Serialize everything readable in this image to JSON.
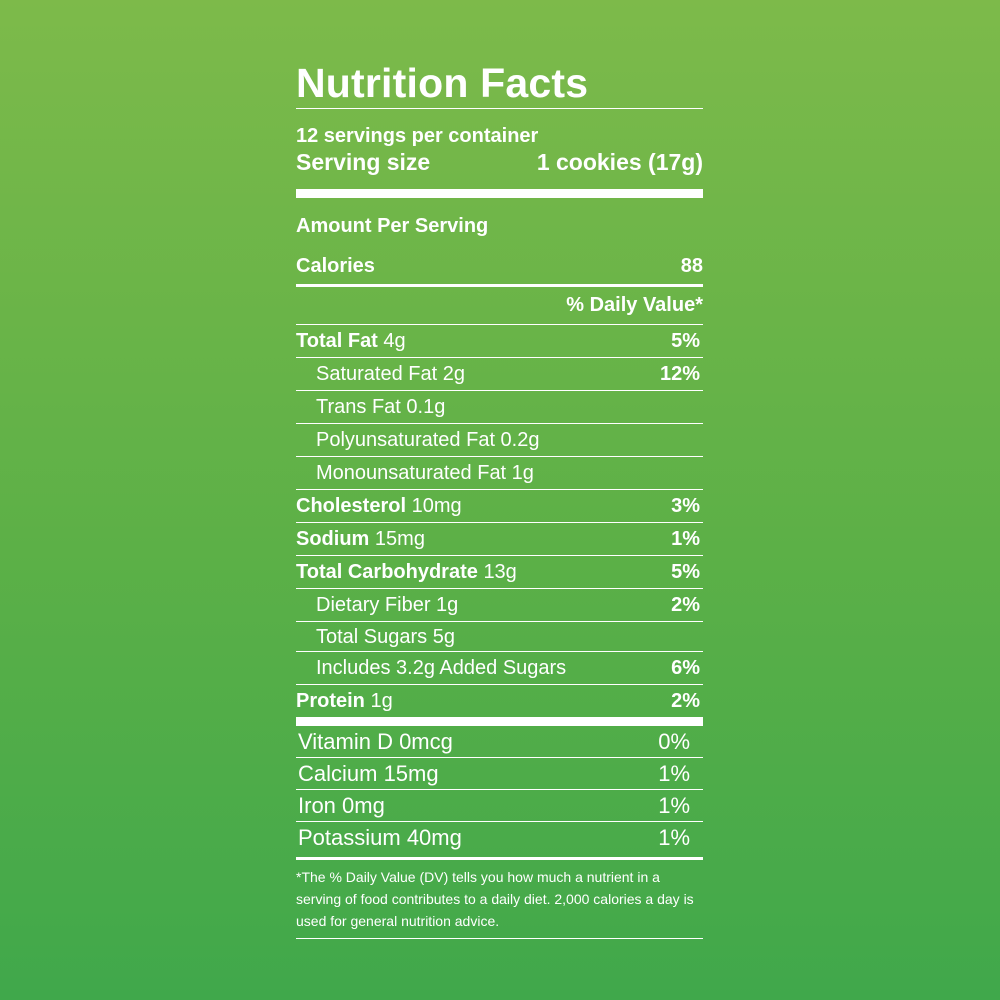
{
  "title": "Nutrition Facts",
  "servings_per_container": "12 servings per container",
  "serving_size_label": "Serving size",
  "serving_size_value": "1 cookies (17g)",
  "amount_per_serving": "Amount Per Serving",
  "calories_label": "Calories",
  "calories_value": "88",
  "dv_header": "% Daily Value*",
  "nutrients": [
    {
      "name": "Total Fat",
      "amount": "4g",
      "dv": "5%"
    },
    {
      "name": "Saturated Fat 2g",
      "dv": "12%"
    },
    {
      "name": "Trans Fat 0.1g",
      "dv": ""
    },
    {
      "name": "Polyunsaturated Fat 0.2g",
      "dv": ""
    },
    {
      "name": "Monounsaturated Fat 1g",
      "dv": ""
    },
    {
      "name": "Cholesterol",
      "amount": "10mg",
      "dv": "3%"
    },
    {
      "name": "Sodium",
      "amount": "15mg",
      "dv": "1%"
    },
    {
      "name": "Total Carbohydrate",
      "amount": "13g",
      "dv": "5%"
    },
    {
      "name": "Dietary Fiber 1g",
      "dv": "2%"
    },
    {
      "name": "Total Sugars 5g",
      "dv": ""
    },
    {
      "name": "Includes 3.2g Added Sugars",
      "dv": "6%"
    },
    {
      "name": "Protein",
      "amount": "1g",
      "dv": "2%"
    }
  ],
  "vitamins": [
    {
      "name": "Vitamin D 0mcg",
      "dv": "0%"
    },
    {
      "name": "Calcium 15mg",
      "dv": "1%"
    },
    {
      "name": "Iron 0mg",
      "dv": "1%"
    },
    {
      "name": "Potassium 40mg",
      "dv": "1%"
    }
  ],
  "footnote": "*The % Daily Value (DV) tells you how much a nutrient in a serving of food contributes to a daily diet. 2,000 calories a day is used for general nutrition advice.",
  "colors": {
    "background_top": "#7dba4a",
    "background_bottom": "#40a84b",
    "text": "#ffffff"
  }
}
